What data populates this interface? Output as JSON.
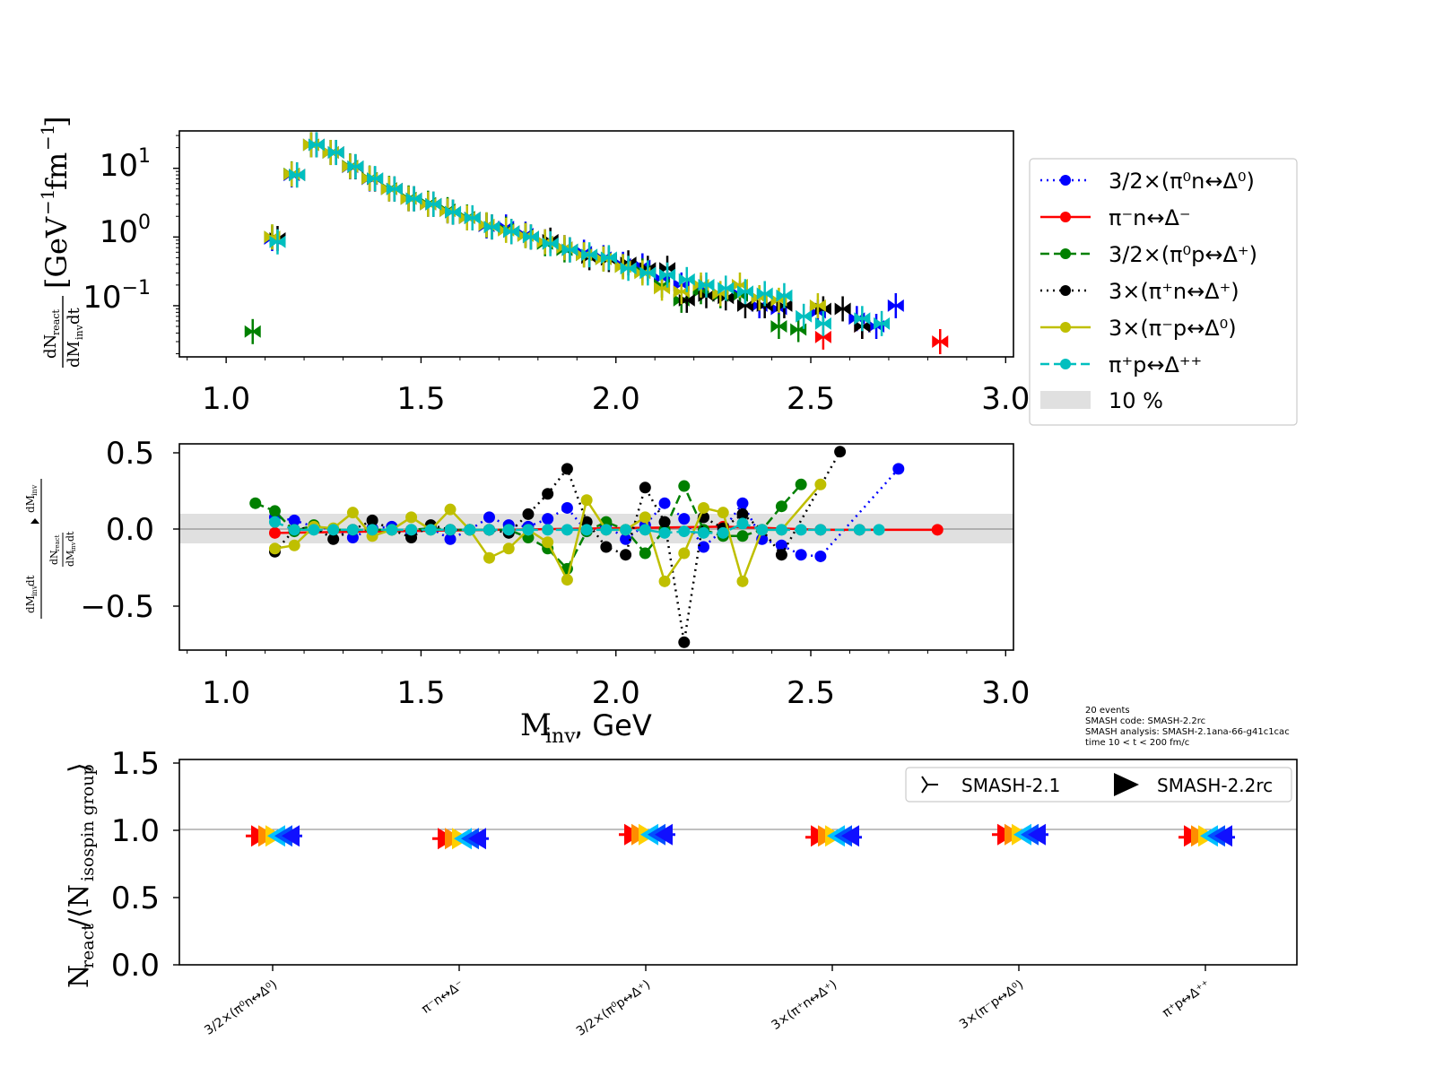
{
  "chart_data": [
    {
      "type": "scatter",
      "subplot": "spectrum",
      "ylabel": "dN_react / (dM_inv dt) [GeV^-1 fm^-1]",
      "yscale": "log",
      "xlim": [
        0.88,
        3.02
      ],
      "ylim": [
        0.018,
        35
      ],
      "xticks": [
        "1.0",
        "1.5",
        "2.0",
        "2.5",
        "3.0"
      ],
      "yticks": [
        "10^-1",
        "10^0",
        "10^1"
      ],
      "grid": false,
      "x": [
        1.075,
        1.125,
        1.175,
        1.225,
        1.275,
        1.325,
        1.375,
        1.425,
        1.475,
        1.525,
        1.575,
        1.625,
        1.675,
        1.725,
        1.775,
        1.825,
        1.875,
        1.925,
        1.975,
        2.025,
        2.075,
        2.125,
        2.175,
        2.225,
        2.275,
        2.325,
        2.375,
        2.425,
        2.475,
        2.525,
        2.575,
        2.625,
        2.675,
        2.725,
        2.825
      ],
      "series": [
        {
          "key": "pi0n",
          "y": [
            null,
            0.95,
            8.0,
            22,
            17,
            10.5,
            7.0,
            5.0,
            3.6,
            3.0,
            2.4,
            1.9,
            1.45,
            1.4,
            1.1,
            0.85,
            0.7,
            0.6,
            0.5,
            0.4,
            0.38,
            0.25,
            0.2,
            0.18,
            0.15,
            0.15,
            0.1,
            0.09,
            null,
            0.08,
            null,
            0.065,
            0.05,
            0.1,
            null
          ]
        },
        {
          "key": "pimn",
          "y": [
            null,
            null,
            null,
            null,
            null,
            null,
            null,
            null,
            null,
            null,
            null,
            null,
            null,
            null,
            null,
            null,
            null,
            null,
            null,
            null,
            null,
            null,
            null,
            null,
            null,
            null,
            null,
            null,
            null,
            0.035,
            null,
            0.05,
            null,
            null,
            0.03
          ]
        },
        {
          "key": "pi0p",
          "y": [
            0.042,
            1.0,
            8.3,
            22,
            17,
            10.8,
            7.2,
            5.1,
            3.7,
            3.1,
            2.5,
            1.95,
            1.5,
            1.3,
            1.05,
            0.8,
            0.65,
            0.55,
            0.48,
            0.37,
            0.32,
            0.2,
            0.12,
            0.16,
            0.14,
            0.14,
            0.13,
            0.05,
            0.045,
            null,
            null,
            null,
            null,
            null,
            null
          ]
        },
        {
          "key": "pipn",
          "y": [
            null,
            0.95,
            8.0,
            22,
            17,
            10.5,
            7.0,
            5.0,
            3.6,
            3.0,
            2.3,
            1.9,
            1.4,
            1.2,
            1.0,
            0.9,
            0.65,
            0.5,
            0.47,
            0.42,
            0.35,
            0.35,
            0.12,
            0.14,
            0.13,
            0.1,
            0.1,
            0.1,
            null,
            0.09,
            0.09,
            0.05,
            null,
            null,
            null
          ]
        },
        {
          "key": "pimp",
          "y": [
            null,
            1.0,
            8.2,
            22,
            17,
            10.6,
            7.1,
            5.0,
            3.6,
            3.0,
            2.4,
            1.9,
            1.5,
            1.25,
            1.05,
            0.85,
            0.7,
            0.55,
            0.48,
            0.37,
            0.3,
            0.18,
            0.16,
            0.2,
            0.15,
            0.2,
            0.13,
            0.12,
            null,
            0.1,
            null,
            null,
            null,
            null,
            null
          ]
        },
        {
          "key": "pipp",
          "y": [
            null,
            0.85,
            8.0,
            22,
            17,
            10.6,
            7.1,
            5.0,
            3.6,
            3.0,
            2.3,
            1.9,
            1.4,
            1.2,
            1.0,
            0.8,
            0.65,
            0.55,
            0.5,
            0.35,
            0.3,
            0.28,
            0.24,
            0.2,
            0.18,
            0.16,
            0.15,
            0.14,
            0.07,
            0.055,
            null,
            0.065,
            0.055,
            null,
            null
          ]
        }
      ]
    },
    {
      "type": "line",
      "subplot": "ratio",
      "ylabel": "relative difference of dN_react / (dM_inv dt)",
      "xlabel": "M_inv, GeV",
      "xlim": [
        0.88,
        3.02
      ],
      "ylim": [
        -0.77,
        0.55
      ],
      "xticks": [
        "1.0",
        "1.5",
        "2.0",
        "2.5",
        "3.0"
      ],
      "yticks": [
        "0.5",
        "0.0",
        "−0.5"
      ],
      "band": {
        "label": "10 %",
        "range": [
          -0.1,
          0.1
        ]
      },
      "x": [
        1.075,
        1.125,
        1.175,
        1.225,
        1.275,
        1.325,
        1.375,
        1.425,
        1.475,
        1.525,
        1.575,
        1.625,
        1.675,
        1.725,
        1.775,
        1.825,
        1.875,
        1.925,
        1.975,
        2.025,
        2.075,
        2.125,
        2.175,
        2.225,
        2.275,
        2.325,
        2.375,
        2.425,
        2.475,
        2.525,
        2.575,
        2.625,
        2.675,
        2.725,
        2.825
      ],
      "series": [
        {
          "key": "pi0n",
          "y": [
            null,
            0.08,
            0.06,
            0.02,
            0.0,
            -0.05,
            0.01,
            0.02,
            -0.02,
            0.01,
            -0.06,
            0.0,
            0.08,
            0.03,
            0.02,
            0.07,
            0.14,
            -0.01,
            0.03,
            -0.06,
            0.03,
            0.17,
            0.07,
            -0.11,
            0.0,
            0.17,
            -0.06,
            -0.1,
            -0.16,
            -0.17,
            null,
            null,
            null,
            0.39,
            null
          ]
        },
        {
          "key": "pimn",
          "y": [
            null,
            -0.02,
            null,
            null,
            null,
            null,
            null,
            null,
            null,
            null,
            null,
            null,
            null,
            null,
            null,
            null,
            null,
            null,
            null,
            null,
            null,
            null,
            null,
            null,
            0.02,
            null,
            null,
            null,
            null,
            0.0,
            null,
            0.0,
            null,
            null,
            0.0
          ]
        },
        {
          "key": "pi0p",
          "y": [
            0.17,
            0.12,
            -0.01,
            0.03,
            0.0,
            0.0,
            0.0,
            0.0,
            0.0,
            0.01,
            0.0,
            0.0,
            0.0,
            0.0,
            -0.05,
            -0.12,
            -0.25,
            -0.01,
            0.05,
            0.0,
            -0.15,
            0.0,
            0.28,
            0.0,
            -0.04,
            -0.04,
            0.0,
            0.15,
            0.29,
            null,
            null,
            null,
            null,
            null,
            null
          ]
        },
        {
          "key": "pipn",
          "y": [
            null,
            -0.14,
            0.0,
            0.02,
            -0.06,
            0.0,
            0.06,
            0.0,
            -0.05,
            0.03,
            0.0,
            0.0,
            0.0,
            -0.02,
            0.1,
            0.23,
            0.39,
            0.05,
            -0.11,
            -0.16,
            0.27,
            0.05,
            -0.72,
            0.08,
            0.01,
            0.1,
            0.0,
            -0.16,
            null,
            null,
            0.5,
            null,
            null,
            null,
            null
          ]
        },
        {
          "key": "pimp",
          "y": [
            null,
            -0.12,
            -0.1,
            0.02,
            0.01,
            0.11,
            -0.04,
            0.0,
            0.08,
            0.0,
            0.13,
            0.0,
            -0.18,
            -0.12,
            0.0,
            -0.08,
            -0.32,
            0.19,
            0.0,
            0.0,
            0.08,
            -0.33,
            -0.15,
            0.14,
            0.11,
            -0.33,
            0.0,
            0.0,
            null,
            0.29,
            null,
            null,
            null,
            null,
            null
          ]
        },
        {
          "key": "pipp",
          "y": [
            null,
            0.05,
            0.0,
            0.0,
            0.0,
            0.0,
            0.0,
            0.0,
            0.0,
            0.0,
            0.0,
            0.0,
            0.0,
            0.0,
            0.0,
            0.0,
            0.0,
            0.0,
            0.0,
            0.0,
            0.0,
            -0.02,
            -0.01,
            -0.02,
            -0.02,
            0.04,
            0.0,
            0.0,
            0.0,
            0.0,
            null,
            0.0,
            0.0,
            null,
            null
          ]
        }
      ]
    },
    {
      "type": "scatter",
      "subplot": "isospin",
      "ylabel": "N_react / <N_isospin group>",
      "ylim": [
        0.0,
        1.55
      ],
      "yticks": [
        "0.0",
        "0.5",
        "1.0",
        "1.5"
      ],
      "reference_line": 1.0,
      "categories": [
        "3/2×(π⁰n↔Δ⁰)",
        "π⁻n↔Δ⁻",
        "3/2×(π⁰p↔Δ⁺)",
        "3×(π⁺n↔Δ⁺)",
        "3×(π⁻p↔Δ⁰)",
        "π⁺p↔Δ⁺⁺"
      ],
      "series": [
        {
          "name": "SMASH-2.1",
          "values": [
            1.0,
            0.98,
            1.01,
            0.99,
            1.01,
            0.99
          ]
        },
        {
          "name": "SMASH-2.2rc",
          "values": [
            1.0,
            0.98,
            1.01,
            1.0,
            1.01,
            1.0
          ]
        }
      ]
    }
  ],
  "legend_top": [
    {
      "key": "pi0n",
      "label": "3/2×(π⁰n↔Δ⁰)",
      "color": "#0000ff",
      "dash": "2,5"
    },
    {
      "key": "pimn",
      "label": "π⁻n↔Δ⁻",
      "color": "#ff0000",
      "dash": ""
    },
    {
      "key": "pi0p",
      "label": "3/2×(π⁰p↔Δ⁺)",
      "color": "#008000",
      "dash": "10,5"
    },
    {
      "key": "pipn",
      "label": "3×(π⁺n↔Δ⁺)",
      "color": "#000000",
      "dash": "2,5"
    },
    {
      "key": "pimp",
      "label": "3×(π⁻p↔Δ⁰)",
      "color": "#bfbf00",
      "dash": ""
    },
    {
      "key": "pipp",
      "label": "π⁺p↔Δ⁺⁺",
      "color": "#00bfbf",
      "dash": "10,5"
    }
  ],
  "legend_band": "10 %",
  "legend_bottom": [
    "SMASH-2.1",
    "SMASH-2.2rc"
  ],
  "info": [
    "20 events",
    "SMASH code:      SMASH-2.2rc",
    "SMASH analysis: SMASH-2.1ana-66-g41c1cac",
    "time 10 < t < 200 fm/c"
  ],
  "axis_text": {
    "xlabel_main": "M",
    "xlabel_sub": "inv",
    "xlabel_rest": ", GeV"
  }
}
